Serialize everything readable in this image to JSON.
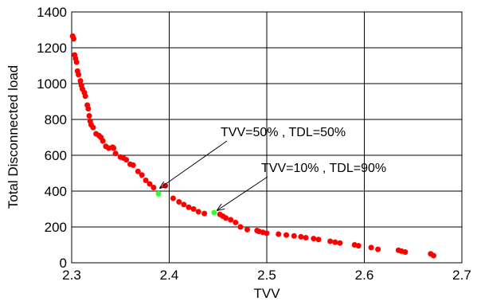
{
  "chart_data": {
    "type": "scatter",
    "title": "",
    "xlabel": "TVV",
    "ylabel": "Total Disconnected load",
    "xlim": [
      2.3,
      2.7
    ],
    "ylim": [
      0,
      1400
    ],
    "xticks": [
      2.3,
      2.4,
      2.5,
      2.6,
      2.7
    ],
    "yticks": [
      0,
      200,
      400,
      600,
      800,
      1000,
      1200,
      1400
    ],
    "xtick_labels": [
      "2.3",
      "2.4",
      "2.5",
      "2.6",
      "2.7"
    ],
    "ytick_labels": [
      "0",
      "200",
      "400",
      "600",
      "800",
      "1000",
      "1200",
      "1400"
    ],
    "grid": true,
    "series": [
      {
        "color": "#ff0000",
        "points": [
          [
            2.301,
            1265
          ],
          [
            2.302,
            1250
          ],
          [
            2.303,
            1160
          ],
          [
            2.304,
            1140
          ],
          [
            2.305,
            1120
          ],
          [
            2.306,
            1070
          ],
          [
            2.307,
            1050
          ],
          [
            2.309,
            1015
          ],
          [
            2.31,
            990
          ],
          [
            2.311,
            970
          ],
          [
            2.313,
            950
          ],
          [
            2.314,
            930
          ],
          [
            2.316,
            880
          ],
          [
            2.317,
            860
          ],
          [
            2.318,
            820
          ],
          [
            2.319,
            790
          ],
          [
            2.32,
            770
          ],
          [
            2.322,
            755
          ],
          [
            2.325,
            720
          ],
          [
            2.328,
            710
          ],
          [
            2.33,
            700
          ],
          [
            2.332,
            680
          ],
          [
            2.335,
            650
          ],
          [
            2.338,
            640
          ],
          [
            2.342,
            645
          ],
          [
            2.343,
            640
          ],
          [
            2.345,
            610
          ],
          [
            2.35,
            590
          ],
          [
            2.353,
            585
          ],
          [
            2.356,
            575
          ],
          [
            2.36,
            550
          ],
          [
            2.363,
            545
          ],
          [
            2.368,
            510
          ],
          [
            2.372,
            490
          ],
          [
            2.376,
            460
          ],
          [
            2.38,
            440
          ],
          [
            2.384,
            420
          ],
          [
            2.396,
            430
          ],
          [
            2.404,
            360
          ],
          [
            2.41,
            340
          ],
          [
            2.415,
            325
          ],
          [
            2.42,
            310
          ],
          [
            2.425,
            300
          ],
          [
            2.43,
            285
          ],
          [
            2.436,
            275
          ],
          [
            2.452,
            270
          ],
          [
            2.455,
            260
          ],
          [
            2.458,
            250
          ],
          [
            2.463,
            240
          ],
          [
            2.468,
            225
          ],
          [
            2.473,
            200
          ],
          [
            2.48,
            185
          ],
          [
            2.49,
            180
          ],
          [
            2.492,
            175
          ],
          [
            2.496,
            170
          ],
          [
            2.5,
            165
          ],
          [
            2.512,
            160
          ],
          [
            2.52,
            155
          ],
          [
            2.528,
            150
          ],
          [
            2.535,
            145
          ],
          [
            2.54,
            140
          ],
          [
            2.548,
            135
          ],
          [
            2.553,
            130
          ],
          [
            2.565,
            120
          ],
          [
            2.57,
            115
          ],
          [
            2.575,
            110
          ],
          [
            2.59,
            100
          ],
          [
            2.594,
            95
          ],
          [
            2.607,
            85
          ],
          [
            2.614,
            75
          ],
          [
            2.635,
            70
          ],
          [
            2.638,
            65
          ],
          [
            2.642,
            60
          ],
          [
            2.668,
            50
          ],
          [
            2.671,
            40
          ]
        ]
      },
      {
        "color": "#33ff33",
        "points": [
          [
            2.389,
            385
          ],
          [
            2.446,
            280
          ]
        ]
      }
    ],
    "annotations": [
      {
        "text": "TVV=50% , TDL=50%",
        "point": [
          2.389,
          385
        ]
      },
      {
        "text": "TVV=10% , TDL=90%",
        "point": [
          2.446,
          280
        ]
      }
    ]
  }
}
